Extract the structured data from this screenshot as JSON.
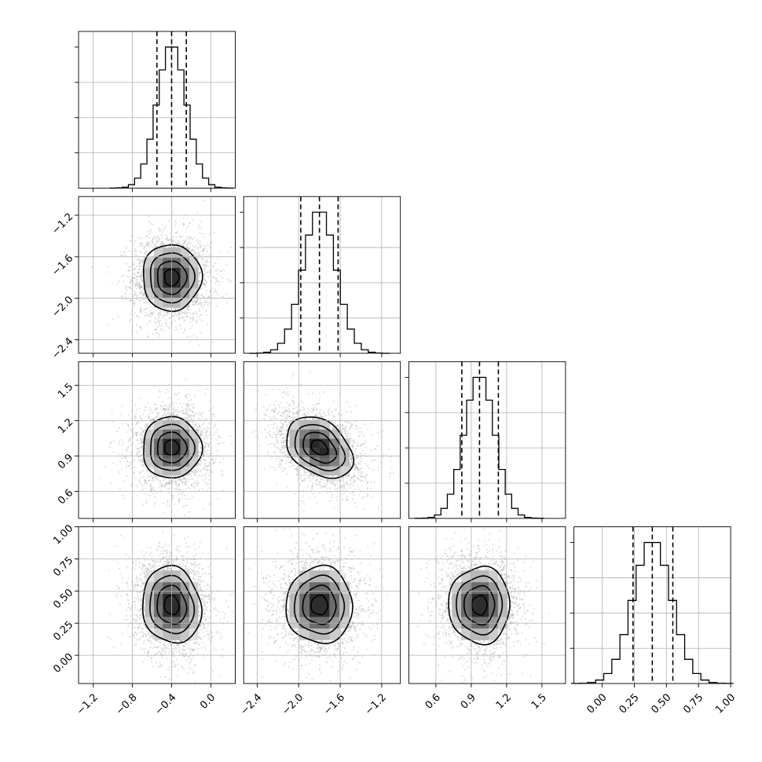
{
  "chart_data": {
    "type": "corner",
    "grid": true,
    "n_scatter_points": 2400,
    "parameters": [
      {
        "mean": -0.4,
        "sd": 0.15,
        "range": [
          -1.35,
          0.25
        ],
        "ticks": [
          -1.2,
          -0.8,
          -0.4,
          0.0
        ],
        "tick_labels": [
          "−1.2",
          "−0.8",
          "−0.4",
          "0.0"
        ],
        "quantiles": [
          -0.55,
          -0.4,
          -0.25
        ]
      },
      {
        "mean": -1.8,
        "sd": 0.16,
        "range": [
          -2.53,
          -1.02
        ],
        "ticks": [
          -2.4,
          -2.0,
          -1.6,
          -1.2
        ],
        "tick_labels": [
          "−2.4",
          "−2.0",
          "−1.6",
          "−1.2"
        ],
        "quantiles": [
          -1.98,
          -1.8,
          -1.62
        ]
      },
      {
        "mean": 0.97,
        "sd": 0.13,
        "range": [
          0.37,
          1.7
        ],
        "ticks": [
          0.6,
          0.9,
          1.2,
          1.5
        ],
        "tick_labels": [
          "0.6",
          "0.9",
          "1.2",
          "1.5"
        ],
        "quantiles": [
          0.82,
          0.97,
          1.13
        ]
      },
      {
        "mean": 0.39,
        "sd": 0.15,
        "range": [
          -0.22,
          1.0
        ],
        "ticks": [
          0.0,
          0.25,
          0.5,
          0.75,
          1.0
        ],
        "tick_labels": [
          "0.00",
          "0.25",
          "0.50",
          "0.75",
          "1.00"
        ],
        "quantiles": [
          0.24,
          0.39,
          0.55
        ]
      }
    ],
    "correlations": [
      [
        1.0,
        0.0,
        0.0,
        -0.1
      ],
      [
        0.0,
        1.0,
        -0.35,
        0.0
      ],
      [
        0.0,
        -0.35,
        1.0,
        0.0
      ],
      [
        -0.1,
        0.0,
        0.0,
        1.0
      ]
    ]
  }
}
